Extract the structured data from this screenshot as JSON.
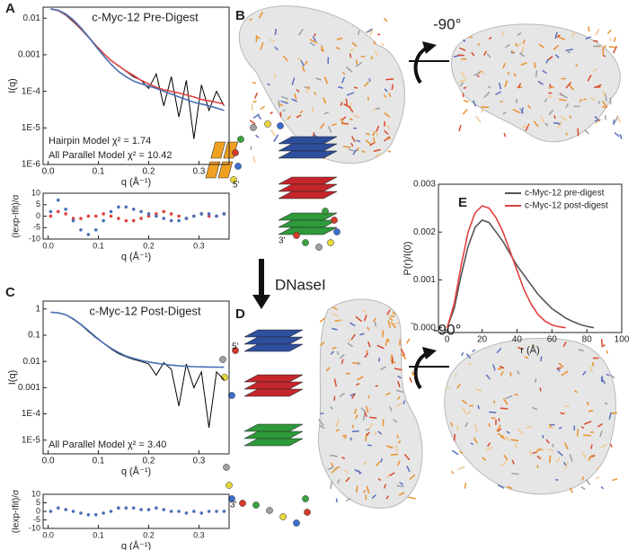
{
  "figure": {
    "panel_labels": [
      "A",
      "B",
      "C",
      "D",
      "E"
    ],
    "rotation_labels": [
      "-90°",
      "-90°"
    ],
    "enzyme": "DNaseI",
    "strand_ends": [
      "5'",
      "3'",
      "5'",
      "3'"
    ]
  },
  "chart_data": [
    {
      "type": "line",
      "title": "c-Myc-12 Pre-Digest",
      "xlabel": "q (Å⁻¹)",
      "ylabel": "I(q)",
      "log_y": true,
      "xlim": [
        -0.01,
        0.36
      ],
      "ylim": [
        1e-06,
        0.02
      ],
      "xticks": [
        {
          "value": 0,
          "label": "0.0"
        },
        0.1,
        0.2,
        0.3
      ],
      "yticks": [
        0.01,
        0.001,
        {
          "value": 0.0001,
          "label": "1E-4"
        },
        {
          "value": 1e-05,
          "label": "1E-5"
        },
        {
          "value": 1e-06,
          "label": "1E-6"
        }
      ],
      "annotations": [
        {
          "text": "Hairpin Model χ² = 1.74",
          "color": "#e0413f"
        },
        {
          "text": "All Parallel Model χ² = 10.42",
          "color": "#4a6fb5"
        }
      ],
      "x": [
        0.005,
        0.02,
        0.035,
        0.05,
        0.065,
        0.08,
        0.095,
        0.11,
        0.125,
        0.14,
        0.155,
        0.17,
        0.185,
        0.2,
        0.215,
        0.23,
        0.245,
        0.26,
        0.275,
        0.29,
        0.305,
        0.32,
        0.335,
        0.35
      ],
      "series": [
        {
          "color": "#000000",
          "values": [
            0.018,
            0.016,
            0.012,
            0.008,
            0.005,
            0.003,
            0.0018,
            0.0011,
            0.0007,
            0.0005,
            0.00035,
            0.00025,
            0.0002,
            0.00012,
            0.0003,
            4e-05,
            0.00025,
            2e-05,
            0.0002,
            5e-06,
            0.00015,
            3e-05,
            0.0001,
            4e-05
          ]
        },
        {
          "color": "#e0413f",
          "values": [
            0.018,
            0.016,
            0.0125,
            0.0085,
            0.0052,
            0.0031,
            0.0018,
            0.0011,
            0.0007,
            0.0005,
            0.00036,
            0.00027,
            0.0002,
            0.00016,
            0.00013,
            0.00011,
            0.0001,
            9e-05,
            8e-05,
            7e-05,
            6e-05,
            5.5e-05,
            5e-05,
            4.5e-05
          ]
        },
        {
          "color": "#4a6fb5",
          "values": [
            0.018,
            0.0165,
            0.013,
            0.009,
            0.0055,
            0.0031,
            0.0017,
            0.00095,
            0.00055,
            0.00035,
            0.00025,
            0.00019,
            0.00016,
            0.00014,
            0.00012,
            0.0001,
            8.5e-05,
            7e-05,
            6e-05,
            5e-05,
            4.5e-05,
            4e-05,
            3.5e-05,
            3e-05
          ]
        }
      ]
    },
    {
      "type": "scatter",
      "xlabel": "q (Å⁻¹)",
      "ylabel": "(Iexp-Ifit)/σ",
      "xlim": [
        -0.01,
        0.36
      ],
      "ylim": [
        -10,
        10
      ],
      "xticks": [
        {
          "value": 0,
          "label": "0.0"
        },
        0.1,
        0.2,
        0.3
      ],
      "yticks": [
        10,
        5,
        0,
        -5,
        -10
      ],
      "x": [
        0.005,
        0.02,
        0.035,
        0.05,
        0.065,
        0.08,
        0.095,
        0.11,
        0.125,
        0.14,
        0.155,
        0.17,
        0.185,
        0.2,
        0.215,
        0.23,
        0.245,
        0.26,
        0.275,
        0.29,
        0.305,
        0.32,
        0.335,
        0.35
      ],
      "series": [
        {
          "color": "#e0413f",
          "values": [
            0,
            2,
            1,
            -1,
            -1,
            0,
            0,
            1,
            0,
            -1,
            -2,
            -2,
            -1,
            0,
            1,
            2,
            1,
            0,
            -1,
            0,
            1,
            0,
            0,
            1
          ]
        },
        {
          "color": "#4a6fb5",
          "values": [
            2,
            7,
            3,
            -2,
            -6,
            -8,
            -6,
            -2,
            2,
            4,
            4,
            3,
            2,
            1,
            0,
            -1,
            -2,
            -2,
            -1,
            0,
            1,
            1,
            0,
            1
          ]
        }
      ]
    },
    {
      "type": "line",
      "title": "c-Myc-12 Post-Digest",
      "xlabel": "q (Å⁻¹)",
      "ylabel": "I(q)",
      "log_y": true,
      "xlim": [
        -0.01,
        0.36
      ],
      "ylim": [
        3e-06,
        2
      ],
      "xticks": [
        {
          "value": 0,
          "label": "0.0"
        },
        0.1,
        0.2,
        0.3
      ],
      "yticks": [
        1,
        0.1,
        0.01,
        0.001,
        {
          "value": 0.0001,
          "label": "1E-4"
        },
        {
          "value": 1e-05,
          "label": "1E-5"
        }
      ],
      "annotations": [
        {
          "text": "All Parallel Model χ² = 3.40",
          "color": "#4a6fb5"
        }
      ],
      "x": [
        0.005,
        0.02,
        0.035,
        0.05,
        0.065,
        0.08,
        0.095,
        0.11,
        0.125,
        0.14,
        0.155,
        0.17,
        0.185,
        0.2,
        0.215,
        0.23,
        0.245,
        0.26,
        0.275,
        0.29,
        0.305,
        0.32,
        0.335,
        0.35
      ],
      "series": [
        {
          "color": "#000000",
          "values": [
            0.75,
            0.7,
            0.6,
            0.4,
            0.25,
            0.14,
            0.08,
            0.05,
            0.03,
            0.02,
            0.015,
            0.012,
            0.01,
            0.008,
            0.003,
            0.009,
            0.005,
            0.0002,
            0.008,
            0.001,
            0.004,
            3e-05,
            0.004,
            0.002
          ]
        },
        {
          "color": "#4a6fb5",
          "values": [
            0.75,
            0.72,
            0.6,
            0.42,
            0.26,
            0.15,
            0.085,
            0.05,
            0.032,
            0.022,
            0.016,
            0.013,
            0.011,
            0.0095,
            0.0085,
            0.0078,
            0.0072,
            0.0068,
            0.0065,
            0.0063,
            0.0062,
            0.0061,
            0.006,
            0.006
          ]
        }
      ]
    },
    {
      "type": "scatter",
      "xlabel": "q (Å⁻¹)",
      "ylabel": "(Iexp-Ifit)/σ",
      "xlim": [
        -0.01,
        0.36
      ],
      "ylim": [
        -10,
        10
      ],
      "xticks": [
        {
          "value": 0,
          "label": "0.0"
        },
        0.1,
        0.2,
        0.3
      ],
      "yticks": [
        10,
        5,
        0,
        -5,
        -10
      ],
      "x": [
        0.005,
        0.02,
        0.035,
        0.05,
        0.065,
        0.08,
        0.095,
        0.11,
        0.125,
        0.14,
        0.155,
        0.17,
        0.185,
        0.2,
        0.215,
        0.23,
        0.245,
        0.26,
        0.275,
        0.29,
        0.305,
        0.32,
        0.335,
        0.35
      ],
      "series": [
        {
          "color": "#4a6fb5",
          "values": [
            0,
            2,
            1,
            0,
            -1,
            -2,
            -2,
            -1,
            0,
            2,
            2,
            2,
            1,
            1,
            2,
            1,
            0,
            0,
            -1,
            0,
            -1,
            0,
            0,
            0
          ]
        }
      ]
    },
    {
      "type": "line",
      "xlabel": "r (Å)",
      "ylabel": "P(r)/I(0)",
      "legend": "upper right",
      "xlim": [
        -5,
        100
      ],
      "ylim": [
        -0.0001,
        0.003
      ],
      "xticks": [
        0,
        20,
        40,
        60,
        80,
        100
      ],
      "yticks": [
        {
          "value": 0,
          "label": "0.000"
        },
        0.001,
        0.002,
        0.003
      ],
      "series": [
        {
          "name": "c-Myc-12 pre-digest",
          "color": "#555555",
          "x": [
            0,
            4,
            8,
            12,
            16,
            20,
            24,
            28,
            32,
            36,
            40,
            44,
            48,
            52,
            56,
            60,
            64,
            68,
            72,
            76,
            80,
            84
          ],
          "values": [
            0,
            0.0004,
            0.0011,
            0.0017,
            0.0021,
            0.00225,
            0.0022,
            0.002,
            0.0018,
            0.00155,
            0.0013,
            0.0011,
            0.0009,
            0.0007,
            0.00055,
            0.0004,
            0.0003,
            0.0002,
            0.00013,
            7e-05,
            3e-05,
            0
          ]
        },
        {
          "name": "c-Myc-12 post-digest",
          "color": "#e0413f",
          "x": [
            0,
            4,
            8,
            12,
            16,
            20,
            24,
            28,
            32,
            36,
            40,
            44,
            48,
            52,
            56,
            60,
            64,
            68
          ],
          "values": [
            0,
            0.0005,
            0.0013,
            0.002,
            0.0024,
            0.00255,
            0.0025,
            0.0023,
            0.002,
            0.0016,
            0.0012,
            0.0008,
            0.0005,
            0.00028,
            0.00014,
            6e-05,
            2e-05,
            0
          ]
        }
      ]
    }
  ]
}
